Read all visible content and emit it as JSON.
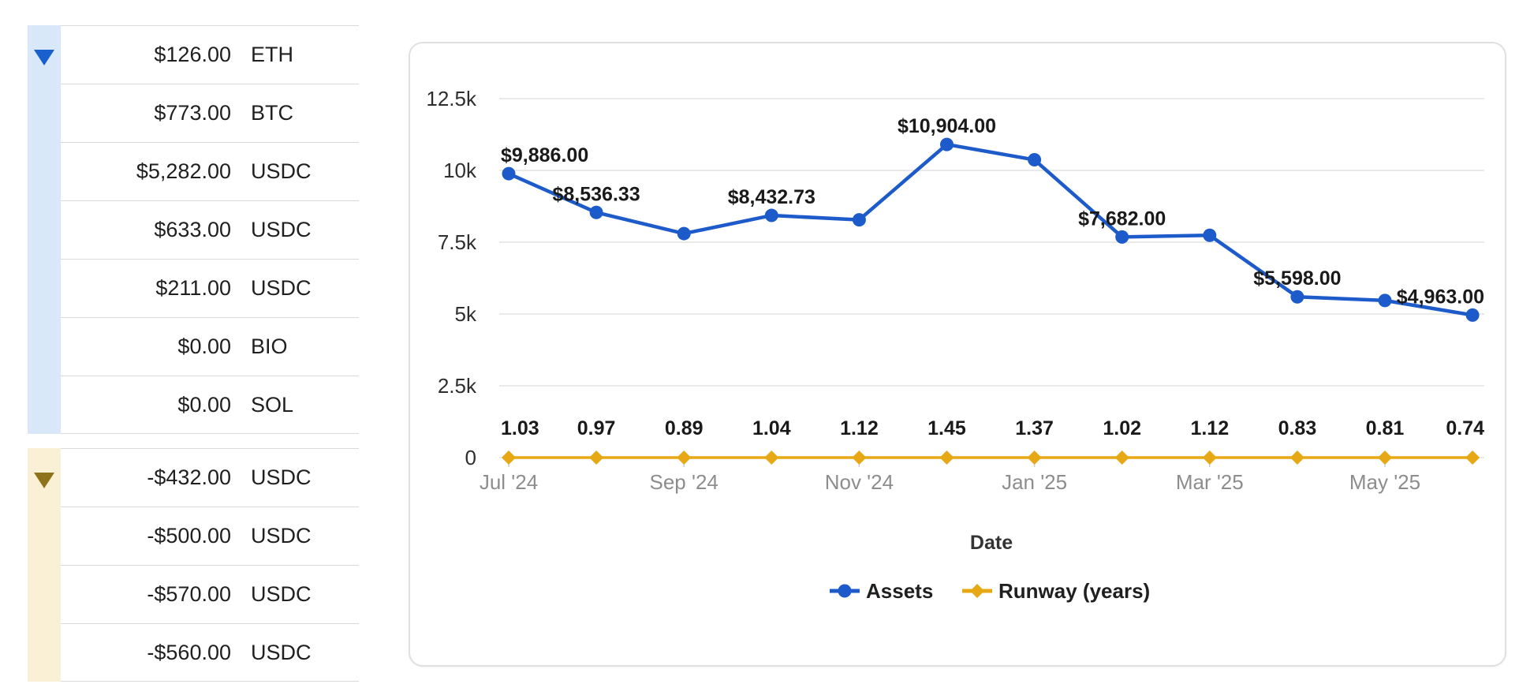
{
  "sidebar": {
    "groups": [
      {
        "name": "inflows-group",
        "indicator": "triangle-down",
        "strip_color": "#d9e8f8",
        "indicator_color": "#1a5fce",
        "rows": [
          {
            "amount": "$126.00",
            "asset": "ETH"
          },
          {
            "amount": "$773.00",
            "asset": "BTC"
          },
          {
            "amount": "$5,282.00",
            "asset": "USDC"
          },
          {
            "amount": "$633.00",
            "asset": "USDC"
          },
          {
            "amount": "$211.00",
            "asset": "USDC"
          },
          {
            "amount": "$0.00",
            "asset": "BIO"
          },
          {
            "amount": "$0.00",
            "asset": "SOL"
          }
        ]
      },
      {
        "name": "outflows-group",
        "indicator": "triangle-down",
        "strip_color": "#faf0d5",
        "indicator_color": "#8f721c",
        "rows": [
          {
            "amount": "-$432.00",
            "asset": "USDC"
          },
          {
            "amount": "-$500.00",
            "asset": "USDC"
          },
          {
            "amount": "-$570.00",
            "asset": "USDC"
          },
          {
            "amount": "-$560.00",
            "asset": "USDC"
          }
        ]
      }
    ]
  },
  "chart_data": {
    "type": "line",
    "title": "",
    "xlabel": "Date",
    "ylabel": "",
    "grid": "horizontal",
    "legend_position": "bottom",
    "x_tick_labels": [
      "Jul '24",
      "Sep '24",
      "Nov '24",
      "Jan '25",
      "Mar '25",
      "May '25"
    ],
    "x_tick_point_indices": [
      0,
      2,
      4,
      6,
      8,
      10
    ],
    "y_ticks": [
      {
        "label": "0",
        "value": 0
      },
      {
        "label": "2.5k",
        "value": 2500
      },
      {
        "label": "5k",
        "value": 5000
      },
      {
        "label": "7.5k",
        "value": 7500
      },
      {
        "label": "10k",
        "value": 10000
      },
      {
        "label": "12.5k",
        "value": 12500
      }
    ],
    "ylim": [
      0,
      12500
    ],
    "colors": {
      "assets": "#1d5aca",
      "runway": "#e7a815",
      "gridline": "#e4e4e4",
      "tick_label": "#2e2e2e",
      "x_axis_label": "#8d8d8d",
      "data_label": "#1a1a1a"
    },
    "series": [
      {
        "name": "Assets",
        "color": "#1d5aca",
        "marker": "circle",
        "values": [
          9886,
          8536.33,
          7800,
          8432.73,
          8280,
          10904,
          10370,
          7682,
          7740,
          5598,
          5470,
          4963
        ],
        "point_labels": [
          "$9,886.00",
          "$8,536.33",
          "",
          "$8,432.73",
          "",
          "$10,904.00",
          "",
          "$7,682.00",
          "",
          "$5,598.00",
          "",
          "$4,963.00"
        ]
      },
      {
        "name": "Runway (years)",
        "color": "#e7a815",
        "marker": "diamond",
        "values": [
          1.03,
          0.97,
          0.89,
          1.04,
          1.12,
          1.45,
          1.37,
          1.02,
          1.12,
          0.83,
          0.81,
          0.74
        ],
        "point_labels": [
          "1.03",
          "0.97",
          "0.89",
          "1.04",
          "1.12",
          "1.45",
          "1.37",
          "1.02",
          "1.12",
          "0.83",
          "0.81",
          "0.74"
        ]
      }
    ]
  }
}
